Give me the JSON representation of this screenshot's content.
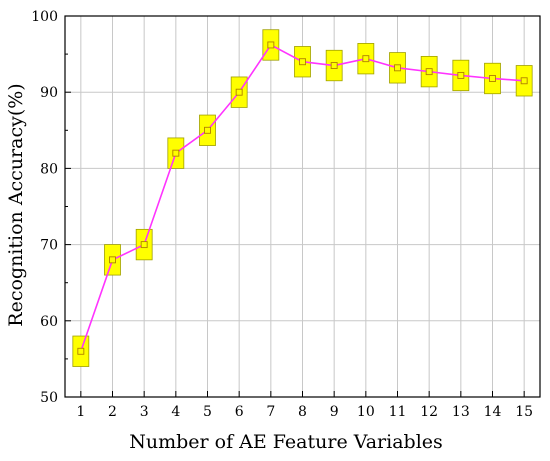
{
  "chart_data": {
    "type": "line",
    "title": "",
    "xlabel": "Number of AE Feature Variables",
    "ylabel": "Recognition Accuracy(%)",
    "x": [
      1,
      2,
      3,
      4,
      5,
      6,
      7,
      8,
      9,
      10,
      11,
      12,
      13,
      14,
      15
    ],
    "values": [
      56,
      68,
      70,
      82,
      85,
      90,
      96.2,
      94,
      93.5,
      94.4,
      93.2,
      92.7,
      92.2,
      91.8,
      91.5
    ],
    "box_low": [
      54,
      66,
      68,
      80,
      83,
      88,
      94.2,
      92,
      91.5,
      92.4,
      91.2,
      90.7,
      90.2,
      89.8,
      89.5
    ],
    "box_high": [
      58,
      70,
      72,
      84,
      87,
      92,
      98.2,
      96,
      95.5,
      96.4,
      95.2,
      94.7,
      94.2,
      93.8,
      93.5
    ],
    "xlim": [
      0.5,
      15.5
    ],
    "ylim": [
      50,
      100
    ],
    "yticks": [
      50,
      60,
      70,
      80,
      90,
      100
    ],
    "xticks": [
      1,
      2,
      3,
      4,
      5,
      6,
      7,
      8,
      9,
      10,
      11,
      12,
      13,
      14,
      15
    ],
    "grid": true,
    "colors": {
      "line": "#ff33ff",
      "box_fill": "#ffff00",
      "box_edge": "#a0a000",
      "grid": "#c8c8c8",
      "marker_edge": "#b08000"
    }
  }
}
